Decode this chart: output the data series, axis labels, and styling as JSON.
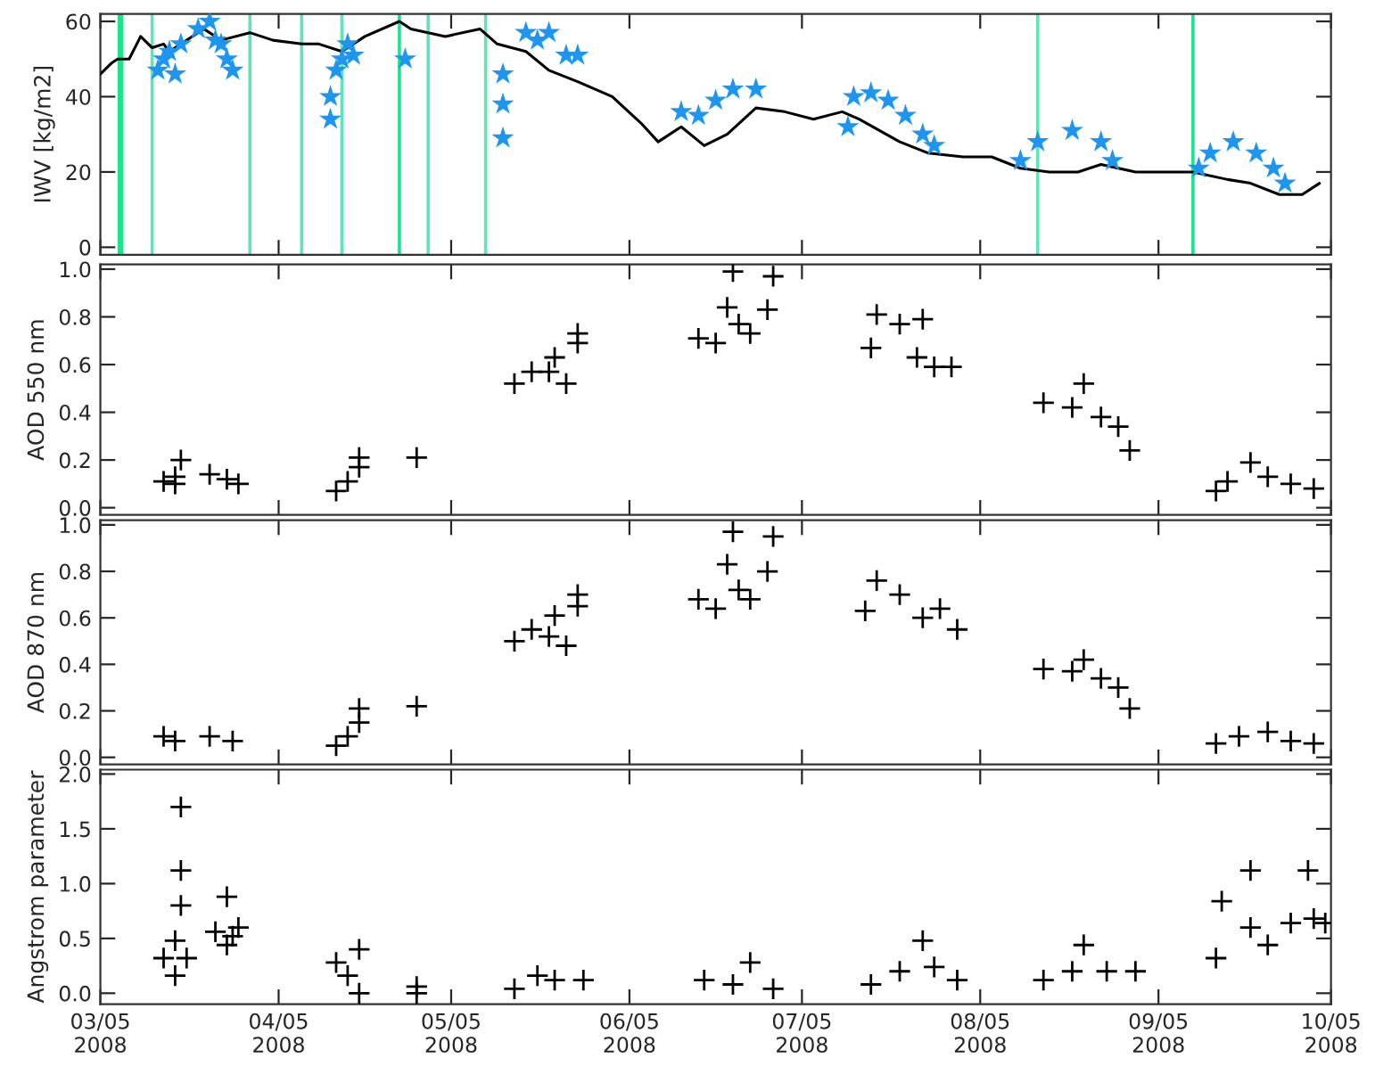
{
  "chart_data": [
    {
      "type": "line",
      "ylabel": "IWV [kg/m2]",
      "xlim": [
        "2008-03-05",
        "2008-10-05"
      ],
      "xticks": [
        {
          "value": "2008-03-05",
          "label": null
        },
        {
          "value": "2008-04-05",
          "label": null
        },
        {
          "value": "2008-05-05",
          "label": null
        },
        {
          "value": "2008-06-05",
          "label": null
        },
        {
          "value": "2008-07-05",
          "label": null
        },
        {
          "value": "2008-08-05",
          "label": null
        },
        {
          "value": "2008-09-05",
          "label": null
        },
        {
          "value": "2008-10-05",
          "label": null
        }
      ],
      "ylim": [
        -2,
        62
      ],
      "yticks": [
        0,
        20,
        40,
        60
      ],
      "tick_labels": "y",
      "series": [
        {
          "type": "line",
          "color": "#000000",
          "x": [
            "2008-03-05",
            "2008-03-07",
            "2008-03-08",
            "2008-03-10",
            "2008-03-12",
            "2008-03-14",
            "2008-03-16",
            "2008-03-17",
            "2008-03-19",
            "2008-03-23",
            "2008-03-26",
            "2008-03-31",
            "2008-04-04",
            "2008-04-09",
            "2008-04-12",
            "2008-04-16",
            "2008-04-20",
            "2008-04-26",
            "2008-04-28",
            "2008-05-04",
            "2008-05-10",
            "2008-05-13",
            "2008-05-18",
            "2008-05-22",
            "2008-05-27",
            "2008-06-02",
            "2008-06-07",
            "2008-06-10",
            "2008-06-14",
            "2008-06-18",
            "2008-06-22",
            "2008-06-27",
            "2008-07-02",
            "2008-07-07",
            "2008-07-12",
            "2008-07-15",
            "2008-07-22",
            "2008-07-27",
            "2008-08-02",
            "2008-08-07",
            "2008-08-12",
            "2008-08-17",
            "2008-08-22",
            "2008-08-26",
            "2008-09-01",
            "2008-09-06",
            "2008-09-11",
            "2008-09-17",
            "2008-09-21",
            "2008-09-26",
            "2008-09-30",
            "2008-10-03"
          ],
          "values": [
            46,
            49,
            50,
            50,
            56,
            53,
            54,
            52,
            54,
            58,
            55,
            57,
            55,
            54,
            54,
            52,
            56,
            60,
            58,
            56,
            58,
            54,
            52,
            47,
            44,
            40,
            33,
            28,
            32,
            27,
            30,
            37,
            36,
            34,
            36,
            34,
            28,
            25,
            24,
            24,
            21,
            20,
            20,
            22,
            20,
            20,
            20,
            18,
            17,
            14,
            14,
            17
          ]
        },
        {
          "type": "scatter",
          "marker": "star",
          "color": "#1e96f0",
          "x": [
            "2008-03-15",
            "2008-03-16",
            "2008-03-17",
            "2008-03-19",
            "2008-03-18",
            "2008-03-22",
            "2008-03-24",
            "2008-03-25",
            "2008-03-26",
            "2008-03-27",
            "2008-03-28",
            "2008-04-14",
            "2008-04-14",
            "2008-04-15",
            "2008-04-16",
            "2008-04-17",
            "2008-04-18",
            "2008-04-27",
            "2008-05-14",
            "2008-05-14",
            "2008-05-14",
            "2008-05-18",
            "2008-05-20",
            "2008-05-22",
            "2008-05-25",
            "2008-05-27",
            "2008-06-14",
            "2008-06-17",
            "2008-06-20",
            "2008-06-23",
            "2008-06-27",
            "2008-07-13",
            "2008-07-14",
            "2008-07-17",
            "2008-07-20",
            "2008-07-23",
            "2008-07-26",
            "2008-07-28",
            "2008-08-12",
            "2008-08-15",
            "2008-08-21",
            "2008-08-26",
            "2008-08-28",
            "2008-09-12",
            "2008-09-14",
            "2008-09-18",
            "2008-09-22",
            "2008-09-25",
            "2008-09-27"
          ],
          "values": [
            47,
            50,
            52,
            54,
            46,
            58,
            60,
            55,
            54,
            50,
            47,
            40,
            34,
            47,
            50,
            54,
            51,
            50,
            46,
            38,
            29,
            57,
            55,
            57,
            51,
            51,
            36,
            35,
            39,
            42,
            42,
            32,
            40,
            41,
            39,
            35,
            30,
            27,
            23,
            28,
            31,
            28,
            23,
            21,
            25,
            28,
            25,
            21,
            17
          ]
        }
      ],
      "bands": [
        {
          "axis": "x",
          "from": "2008-03-08",
          "to": "2008-03-09",
          "color": "#19e68c"
        }
      ],
      "ref_lines": [
        {
          "axis": "x",
          "value": "2008-03-14",
          "color": "#5ee6b4"
        },
        {
          "axis": "x",
          "value": "2008-03-31",
          "color": "#5ee6b4"
        },
        {
          "axis": "x",
          "value": "2008-04-09",
          "color": "#5ee6b4"
        },
        {
          "axis": "x",
          "value": "2008-04-16",
          "color": "#5ee6b4"
        },
        {
          "axis": "x",
          "value": "2008-04-26",
          "color": "#19e68c"
        },
        {
          "axis": "x",
          "value": "2008-05-01",
          "color": "#5ee6b4"
        },
        {
          "axis": "x",
          "value": "2008-05-11",
          "color": "#5ee6b4"
        },
        {
          "axis": "x",
          "value": "2008-08-15",
          "color": "#5ee6b4"
        },
        {
          "axis": "x",
          "value": "2008-09-11",
          "color": "#19e68c"
        }
      ]
    },
    {
      "type": "scatter",
      "marker": "cross",
      "ylabel": "AOD 550 nm",
      "xlim": [
        "2008-03-05",
        "2008-10-05"
      ],
      "xticks": [
        {
          "value": "2008-03-05",
          "label": null
        },
        {
          "value": "2008-04-05",
          "label": null
        },
        {
          "value": "2008-05-05",
          "label": null
        },
        {
          "value": "2008-06-05",
          "label": null
        },
        {
          "value": "2008-07-05",
          "label": null
        },
        {
          "value": "2008-08-05",
          "label": null
        },
        {
          "value": "2008-09-05",
          "label": null
        },
        {
          "value": "2008-10-05",
          "label": null
        }
      ],
      "ylim": [
        -0.03,
        1.02
      ],
      "yticks": [
        {
          "value": 0,
          "label": "0.0"
        },
        {
          "value": 0.2,
          "label": "0.2"
        },
        {
          "value": 0.4,
          "label": "0.4"
        },
        {
          "value": 0.6,
          "label": "0.6"
        },
        {
          "value": 0.8,
          "label": "0.8"
        },
        {
          "value": 1,
          "label": "1.0"
        }
      ],
      "tick_labels": "y",
      "series": [
        {
          "color": "#000000",
          "x": [
            "2008-03-16",
            "2008-03-18",
            "2008-03-19",
            "2008-03-18",
            "2008-03-24",
            "2008-03-27",
            "2008-03-29",
            "2008-04-15",
            "2008-04-17",
            "2008-04-19",
            "2008-04-19",
            "2008-04-29",
            "2008-05-16",
            "2008-05-19",
            "2008-05-22",
            "2008-05-23",
            "2008-05-25",
            "2008-05-27",
            "2008-05-27",
            "2008-06-17",
            "2008-06-20",
            "2008-06-22",
            "2008-06-23",
            "2008-06-24",
            "2008-06-26",
            "2008-06-29",
            "2008-06-30",
            "2008-07-17",
            "2008-07-18",
            "2008-07-22",
            "2008-07-26",
            "2008-07-25",
            "2008-07-28",
            "2008-07-31",
            "2008-08-16",
            "2008-08-21",
            "2008-08-23",
            "2008-08-26",
            "2008-08-29",
            "2008-08-31",
            "2008-09-15",
            "2008-09-17",
            "2008-09-21",
            "2008-09-24",
            "2008-09-28",
            "2008-10-02"
          ],
          "values": [
            0.11,
            0.1,
            0.2,
            0.13,
            0.14,
            0.12,
            0.1,
            0.07,
            0.11,
            0.21,
            0.17,
            0.21,
            0.52,
            0.57,
            0.57,
            0.63,
            0.52,
            0.73,
            0.69,
            0.71,
            0.69,
            0.84,
            0.99,
            0.77,
            0.73,
            0.83,
            0.97,
            0.67,
            0.81,
            0.77,
            0.79,
            0.63,
            0.59,
            0.59,
            0.44,
            0.42,
            0.52,
            0.38,
            0.34,
            0.24,
            0.07,
            0.11,
            0.19,
            0.13,
            0.1,
            0.08
          ]
        }
      ]
    },
    {
      "type": "scatter",
      "marker": "cross",
      "ylabel": "AOD 870 nm",
      "xlim": [
        "2008-03-05",
        "2008-10-05"
      ],
      "xticks": [
        {
          "value": "2008-03-05",
          "label": null
        },
        {
          "value": "2008-04-05",
          "label": null
        },
        {
          "value": "2008-05-05",
          "label": null
        },
        {
          "value": "2008-06-05",
          "label": null
        },
        {
          "value": "2008-07-05",
          "label": null
        },
        {
          "value": "2008-08-05",
          "label": null
        },
        {
          "value": "2008-09-05",
          "label": null
        },
        {
          "value": "2008-10-05",
          "label": null
        }
      ],
      "ylim": [
        -0.03,
        1.02
      ],
      "yticks": [
        {
          "value": 0,
          "label": "0.0"
        },
        {
          "value": 0.2,
          "label": "0.2"
        },
        {
          "value": 0.4,
          "label": "0.4"
        },
        {
          "value": 0.6,
          "label": "0.6"
        },
        {
          "value": 0.8,
          "label": "0.8"
        },
        {
          "value": 1,
          "label": "1.0"
        }
      ],
      "tick_labels": "y",
      "series": [
        {
          "color": "#000000",
          "x": [
            "2008-03-16",
            "2008-03-18",
            "2008-03-24",
            "2008-03-28",
            "2008-04-15",
            "2008-04-17",
            "2008-04-19",
            "2008-04-19",
            "2008-04-29",
            "2008-05-16",
            "2008-05-19",
            "2008-05-22",
            "2008-05-23",
            "2008-05-25",
            "2008-05-27",
            "2008-05-27",
            "2008-06-17",
            "2008-06-20",
            "2008-06-22",
            "2008-06-23",
            "2008-06-24",
            "2008-06-26",
            "2008-06-29",
            "2008-06-30",
            "2008-07-16",
            "2008-07-18",
            "2008-07-22",
            "2008-07-26",
            "2008-07-29",
            "2008-08-01",
            "2008-08-16",
            "2008-08-21",
            "2008-08-23",
            "2008-08-26",
            "2008-08-29",
            "2008-08-31",
            "2008-09-15",
            "2008-09-19",
            "2008-09-24",
            "2008-09-28",
            "2008-10-02"
          ],
          "values": [
            0.09,
            0.07,
            0.09,
            0.07,
            0.05,
            0.09,
            0.21,
            0.15,
            0.22,
            0.5,
            0.55,
            0.52,
            0.61,
            0.48,
            0.7,
            0.65,
            0.68,
            0.64,
            0.83,
            0.97,
            0.72,
            0.68,
            0.8,
            0.95,
            0.63,
            0.76,
            0.7,
            0.6,
            0.64,
            0.55,
            0.38,
            0.37,
            0.42,
            0.34,
            0.3,
            0.21,
            0.06,
            0.09,
            0.11,
            0.07,
            0.06
          ]
        }
      ]
    },
    {
      "type": "scatter",
      "marker": "cross",
      "ylabel": "Angstrom parameter",
      "xlim": [
        "2008-03-05",
        "2008-10-05"
      ],
      "xticks": [
        {
          "value": "2008-03-05",
          "label": "03/05\n2008"
        },
        {
          "value": "2008-04-05",
          "label": "04/05\n2008"
        },
        {
          "value": "2008-05-05",
          "label": "05/05\n2008"
        },
        {
          "value": "2008-06-05",
          "label": "06/05\n2008"
        },
        {
          "value": "2008-07-05",
          "label": "07/05\n2008"
        },
        {
          "value": "2008-08-05",
          "label": "08/05\n2008"
        },
        {
          "value": "2008-09-05",
          "label": "09/05\n2008"
        },
        {
          "value": "2008-10-05",
          "label": "10/05\n2008"
        }
      ],
      "ylim": [
        -0.1,
        2.04
      ],
      "yticks": [
        {
          "value": 0,
          "label": "0.0"
        },
        {
          "value": 0.5,
          "label": "0.5"
        },
        {
          "value": 1,
          "label": "1.0"
        },
        {
          "value": 1.5,
          "label": "1.5"
        },
        {
          "value": 2,
          "label": "2.0"
        }
      ],
      "series": [
        {
          "color": "#000000",
          "x": [
            "2008-03-16",
            "2008-03-18",
            "2008-03-18",
            "2008-03-19",
            "2008-03-19",
            "2008-03-19",
            "2008-03-20",
            "2008-03-25",
            "2008-03-27",
            "2008-03-27",
            "2008-03-28",
            "2008-03-29",
            "2008-04-15",
            "2008-04-17",
            "2008-04-19",
            "2008-04-19",
            "2008-04-29",
            "2008-04-29",
            "2008-05-16",
            "2008-05-20",
            "2008-05-23",
            "2008-05-28",
            "2008-06-18",
            "2008-06-23",
            "2008-06-26",
            "2008-06-30",
            "2008-07-17",
            "2008-07-22",
            "2008-07-26",
            "2008-07-28",
            "2008-08-01",
            "2008-08-16",
            "2008-08-21",
            "2008-08-23",
            "2008-08-27",
            "2008-09-01",
            "2008-09-15",
            "2008-09-16",
            "2008-09-21",
            "2008-09-21",
            "2008-09-24",
            "2008-09-28",
            "2008-10-01",
            "2008-10-02",
            "2008-10-04"
          ],
          "values": [
            0.32,
            0.48,
            0.16,
            1.7,
            1.12,
            0.8,
            0.32,
            0.56,
            0.44,
            0.88,
            0.52,
            0.6,
            0.28,
            0.16,
            0.4,
            0.0,
            0.0,
            0.06,
            0.04,
            0.16,
            0.12,
            0.12,
            0.12,
            0.08,
            0.28,
            0.04,
            0.08,
            0.2,
            0.48,
            0.24,
            0.12,
            0.12,
            0.2,
            0.44,
            0.2,
            0.2,
            0.32,
            0.84,
            1.12,
            0.6,
            0.44,
            0.64,
            1.12,
            0.68,
            0.64
          ]
        }
      ]
    }
  ]
}
